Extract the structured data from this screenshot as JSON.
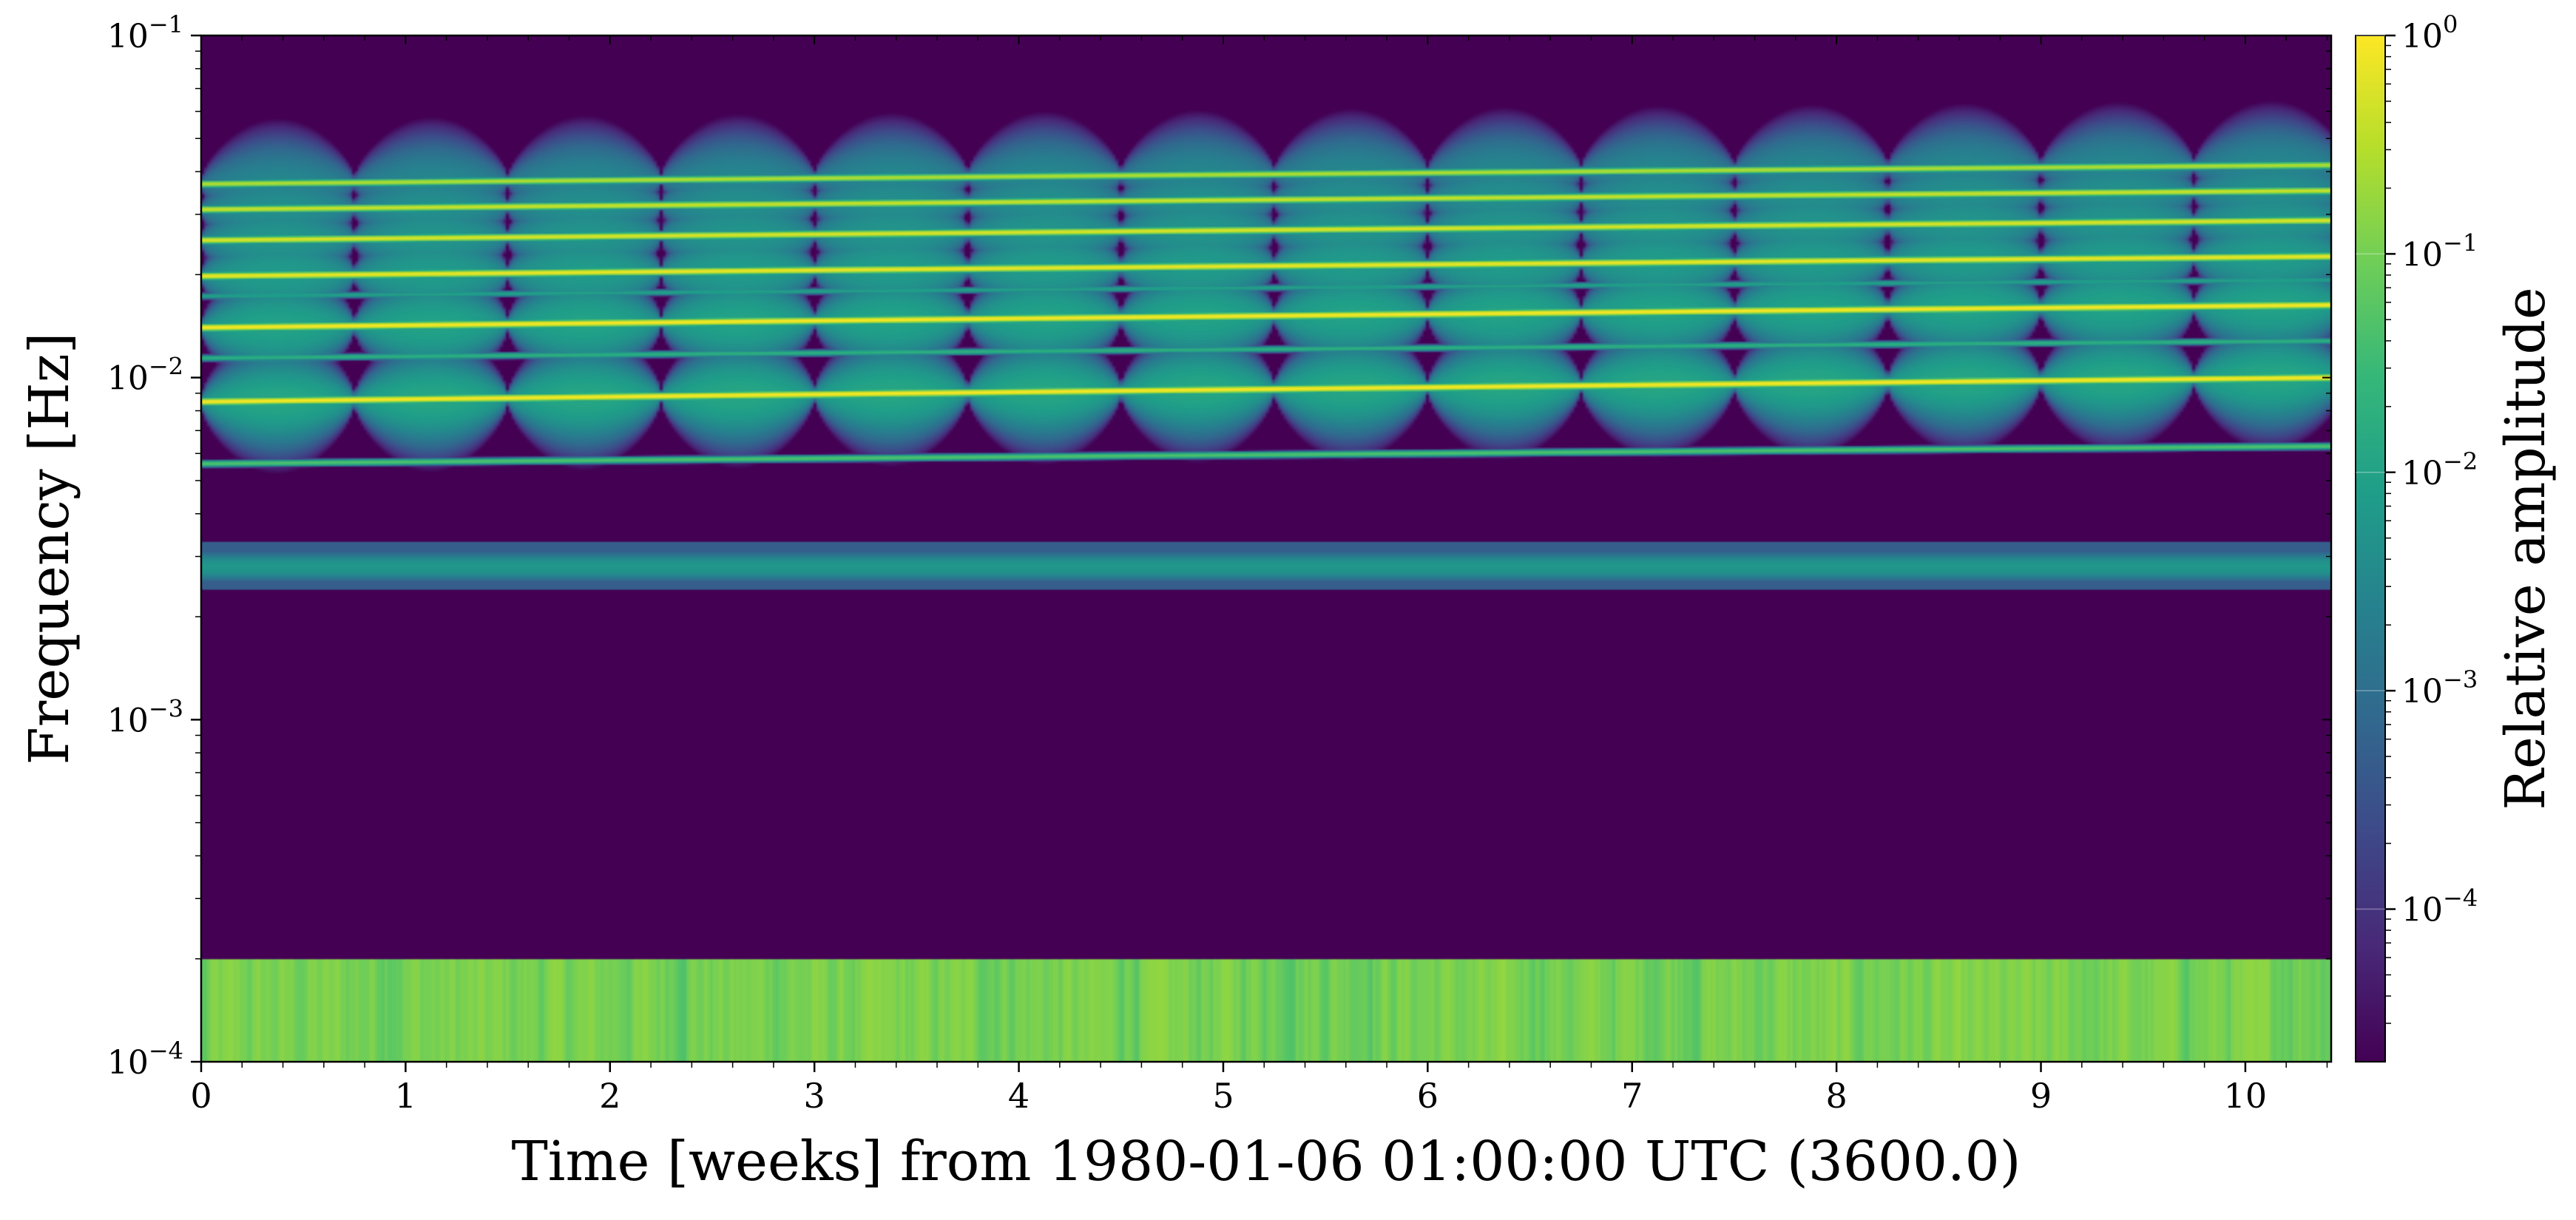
{
  "chart_data": {
    "type": "heatmap",
    "title": "",
    "xlabel": "Time [weeks] from 1980-01-06 01:00:00 UTC (3600.0)",
    "ylabel": "Frequency [Hz]",
    "xlim": [
      0,
      10.42
    ],
    "ylim": [
      0.0001,
      0.1
    ],
    "yscale": "log",
    "grid": false,
    "x_ticks": [
      0,
      1,
      2,
      3,
      4,
      5,
      6,
      7,
      8,
      9,
      10
    ],
    "x_tick_labels": [
      "0",
      "1",
      "2",
      "3",
      "4",
      "5",
      "6",
      "7",
      "8",
      "9",
      "10"
    ],
    "y_ticks": [
      0.0001,
      0.001,
      0.01,
      0.1
    ],
    "y_tick_labels": [
      {
        "base": "10",
        "exp": "−4"
      },
      {
        "base": "10",
        "exp": "−3"
      },
      {
        "base": "10",
        "exp": "−2"
      },
      {
        "base": "10",
        "exp": "−1"
      }
    ],
    "colormap": "viridis",
    "colorbar": {
      "label": "Relative amplitude",
      "scale": "log",
      "lim": [
        2e-05,
        1
      ],
      "ticks": [
        0.0001,
        0.001,
        0.01,
        0.1,
        1
      ],
      "tick_labels": [
        {
          "base": "10",
          "exp": "−4"
        },
        {
          "base": "10",
          "exp": "−3"
        },
        {
          "base": "10",
          "exp": "−2"
        },
        {
          "base": "10",
          "exp": "−1"
        },
        {
          "base": "10",
          "exp": "0"
        }
      ],
      "colors": [
        "#440154",
        "#482878",
        "#3e4989",
        "#31688e",
        "#26828e",
        "#1f9e89",
        "#35b779",
        "#6ece58",
        "#b5de2b",
        "#fde725"
      ]
    },
    "background_value": 2e-05,
    "harmonic_lines": [
      {
        "f_start": 0.0085,
        "f_end": 0.01,
        "amplitude": 1.0,
        "halo": 1.0
      },
      {
        "f_start": 0.014,
        "f_end": 0.0163,
        "amplitude": 1.0,
        "halo": 0.85
      },
      {
        "f_start": 0.0198,
        "f_end": 0.0226,
        "amplitude": 0.8,
        "halo": 0.6
      },
      {
        "f_start": 0.0252,
        "f_end": 0.0288,
        "amplitude": 0.6,
        "halo": 0.45
      },
      {
        "f_start": 0.031,
        "f_end": 0.0352,
        "amplitude": 0.45,
        "halo": 0.35
      },
      {
        "f_start": 0.0368,
        "f_end": 0.0418,
        "amplitude": 0.3,
        "halo": 0.25
      },
      {
        "f_start": 0.0056,
        "f_end": 0.0063,
        "amplitude": 0.05,
        "halo": 0
      },
      {
        "f_start": 0.0114,
        "f_end": 0.0128,
        "amplitude": 0.02,
        "halo": 0
      },
      {
        "f_start": 0.0173,
        "f_end": 0.0193,
        "amplitude": 0.01,
        "halo": 0
      }
    ],
    "lowfreq_band": {
      "f_center": 0.0028,
      "f_low": 0.0024,
      "f_high": 0.0033,
      "amplitude": 0.03
    },
    "bottom_band": {
      "f_low": 0.0001,
      "f_high": 0.0002,
      "amplitude": 0.2
    },
    "lobe_period_weeks": 0.75
  }
}
